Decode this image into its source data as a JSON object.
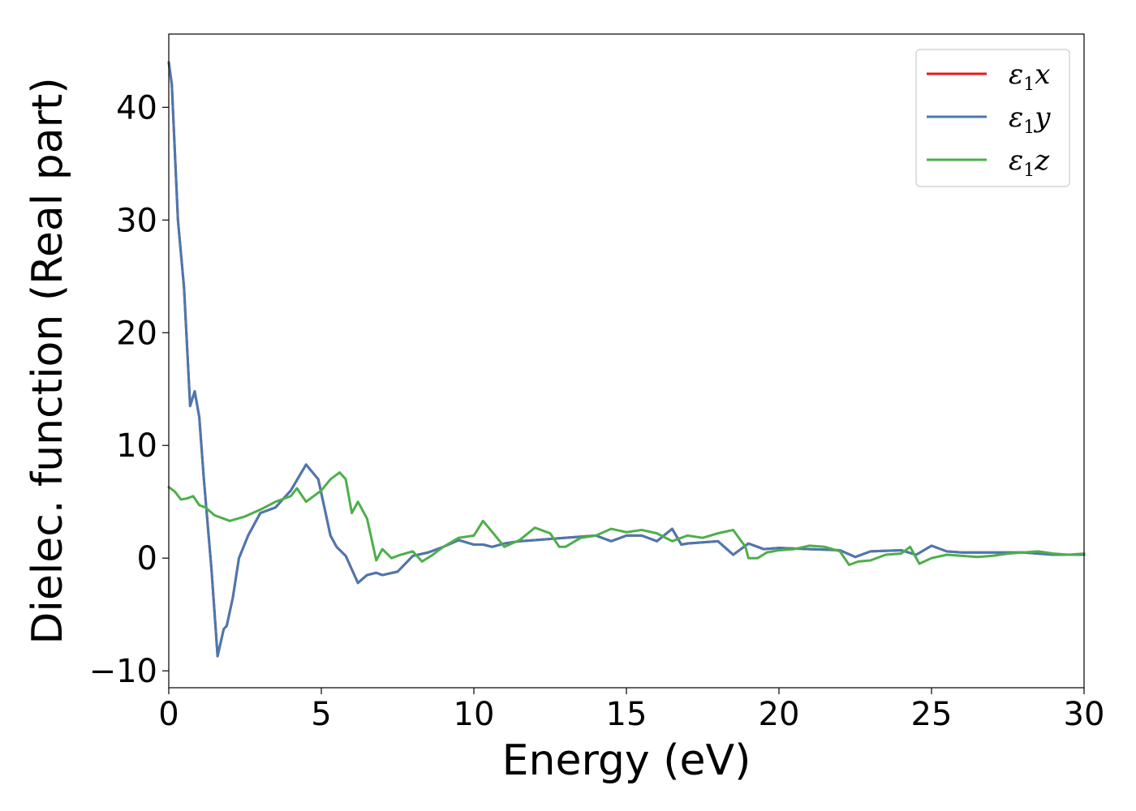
{
  "chart_data": {
    "type": "line",
    "title": "",
    "xlabel": "Energy (eV)",
    "ylabel": "Dielec. function (Real part)",
    "xlim": [
      0,
      30
    ],
    "ylim": [
      -11.5,
      46.5
    ],
    "xticks": [
      0,
      5,
      10,
      15,
      20,
      25,
      30
    ],
    "xtick_labels": [
      "0",
      "5",
      "10",
      "15",
      "20",
      "25",
      "30"
    ],
    "yticks": [
      -10,
      0,
      10,
      20,
      30,
      40
    ],
    "ytick_labels": [
      "−10",
      "0",
      "10",
      "20",
      "30",
      "40"
    ],
    "grid": false,
    "legend_position": "top-right",
    "series": [
      {
        "name": "ε1x",
        "legend_base": "ε",
        "legend_sub": "1",
        "legend_var": "x",
        "color": "#e41a1c",
        "x": [
          0,
          0.1,
          0.3,
          0.5,
          0.7,
          0.85,
          1.0,
          1.15,
          1.4,
          1.6,
          1.8,
          1.9,
          2.1,
          2.3,
          2.6,
          3.0,
          3.5,
          4.0,
          4.5,
          4.9,
          5.1,
          5.3,
          5.5,
          5.8,
          6.0,
          6.2,
          6.5,
          6.8,
          7.0,
          7.5,
          8.0,
          8.5,
          9.0,
          9.5,
          10.0,
          10.3,
          10.6,
          11.0,
          11.5,
          12.0,
          13.0,
          14.0,
          14.5,
          15.0,
          15.5,
          16.0,
          16.5,
          16.8,
          17.0,
          17.5,
          18.0,
          18.5,
          19.0,
          19.5,
          20.0,
          21.0,
          22.0,
          22.5,
          23.0,
          24.0,
          24.5,
          25.0,
          25.5,
          26.0,
          27.0,
          28.0,
          29.0,
          30.0
        ],
        "y": [
          44.0,
          42.0,
          30.0,
          24.0,
          13.5,
          14.8,
          12.5,
          7.0,
          -1.0,
          -8.7,
          -6.3,
          -6.0,
          -3.5,
          0.0,
          2.0,
          4.0,
          4.5,
          6.0,
          8.3,
          7.0,
          4.5,
          2.0,
          1.0,
          0.2,
          -1.0,
          -2.2,
          -1.5,
          -1.3,
          -1.5,
          -1.2,
          0.2,
          0.5,
          1.0,
          1.6,
          1.2,
          1.2,
          1.0,
          1.3,
          1.5,
          1.6,
          1.8,
          2.0,
          1.5,
          2.0,
          2.0,
          1.5,
          2.6,
          1.2,
          1.3,
          1.4,
          1.5,
          0.3,
          1.3,
          0.8,
          0.9,
          0.8,
          0.7,
          0.1,
          0.6,
          0.7,
          0.3,
          1.1,
          0.6,
          0.5,
          0.5,
          0.5,
          0.3,
          0.3
        ]
      },
      {
        "name": "ε1y",
        "legend_base": "ε",
        "legend_sub": "1",
        "legend_var": "y",
        "color": "#4a78b0",
        "x": [
          0,
          0.1,
          0.3,
          0.5,
          0.7,
          0.85,
          1.0,
          1.15,
          1.4,
          1.6,
          1.8,
          1.9,
          2.1,
          2.3,
          2.6,
          3.0,
          3.5,
          4.0,
          4.5,
          4.9,
          5.1,
          5.3,
          5.5,
          5.8,
          6.0,
          6.2,
          6.5,
          6.8,
          7.0,
          7.5,
          8.0,
          8.5,
          9.0,
          9.5,
          10.0,
          10.3,
          10.6,
          11.0,
          11.5,
          12.0,
          13.0,
          14.0,
          14.5,
          15.0,
          15.5,
          16.0,
          16.5,
          16.8,
          17.0,
          17.5,
          18.0,
          18.5,
          19.0,
          19.5,
          20.0,
          21.0,
          22.0,
          22.5,
          23.0,
          24.0,
          24.5,
          25.0,
          25.5,
          26.0,
          27.0,
          28.0,
          29.0,
          30.0
        ],
        "y": [
          44.0,
          42.0,
          30.0,
          24.0,
          13.5,
          14.8,
          12.5,
          7.0,
          -1.0,
          -8.7,
          -6.3,
          -6.0,
          -3.5,
          0.0,
          2.0,
          4.0,
          4.5,
          6.0,
          8.3,
          7.0,
          4.5,
          2.0,
          1.0,
          0.2,
          -1.0,
          -2.2,
          -1.5,
          -1.3,
          -1.5,
          -1.2,
          0.2,
          0.5,
          1.0,
          1.6,
          1.2,
          1.2,
          1.0,
          1.3,
          1.5,
          1.6,
          1.8,
          2.0,
          1.5,
          2.0,
          2.0,
          1.5,
          2.6,
          1.2,
          1.3,
          1.4,
          1.5,
          0.3,
          1.3,
          0.8,
          0.9,
          0.8,
          0.7,
          0.1,
          0.6,
          0.7,
          0.3,
          1.1,
          0.6,
          0.5,
          0.5,
          0.5,
          0.3,
          0.3
        ]
      },
      {
        "name": "ε1z",
        "legend_base": "ε",
        "legend_sub": "1",
        "legend_var": "z",
        "color": "#4daf4a",
        "x": [
          0,
          0.2,
          0.4,
          0.6,
          0.8,
          1.0,
          1.2,
          1.5,
          2.0,
          2.5,
          3.0,
          3.5,
          4.0,
          4.2,
          4.5,
          5.0,
          5.3,
          5.6,
          5.8,
          6.0,
          6.2,
          6.5,
          6.8,
          7.0,
          7.3,
          7.6,
          8.0,
          8.3,
          8.6,
          9.0,
          9.5,
          10.0,
          10.3,
          10.7,
          11.0,
          11.5,
          12.0,
          12.5,
          12.8,
          13.0,
          13.5,
          14.0,
          14.5,
          15.0,
          15.5,
          16.0,
          16.5,
          17.0,
          17.5,
          18.0,
          18.5,
          18.9,
          19.0,
          19.3,
          19.6,
          20.0,
          20.5,
          21.0,
          21.5,
          22.0,
          22.3,
          22.6,
          23.0,
          23.5,
          24.0,
          24.3,
          24.6,
          25.0,
          25.5,
          26.0,
          26.5,
          27.0,
          27.5,
          28.0,
          28.5,
          29.0,
          29.5,
          30.0
        ],
        "y": [
          6.3,
          5.9,
          5.2,
          5.3,
          5.5,
          4.7,
          4.5,
          3.8,
          3.3,
          3.7,
          4.3,
          5.0,
          5.5,
          6.2,
          5.0,
          6.0,
          7.0,
          7.6,
          7.0,
          4.0,
          5.0,
          3.5,
          -0.2,
          0.8,
          0.0,
          0.3,
          0.6,
          -0.3,
          0.2,
          1.0,
          1.8,
          2.0,
          3.3,
          2.0,
          1.0,
          1.6,
          2.7,
          2.2,
          1.0,
          1.0,
          1.8,
          2.0,
          2.6,
          2.3,
          2.5,
          2.2,
          1.5,
          2.0,
          1.8,
          2.2,
          2.5,
          1.0,
          0.0,
          0.0,
          0.5,
          0.7,
          0.8,
          1.1,
          1.0,
          0.6,
          -0.6,
          -0.3,
          -0.2,
          0.3,
          0.4,
          1.0,
          -0.5,
          0.0,
          0.3,
          0.2,
          0.1,
          0.2,
          0.4,
          0.5,
          0.6,
          0.4,
          0.3,
          0.4
        ]
      }
    ]
  }
}
